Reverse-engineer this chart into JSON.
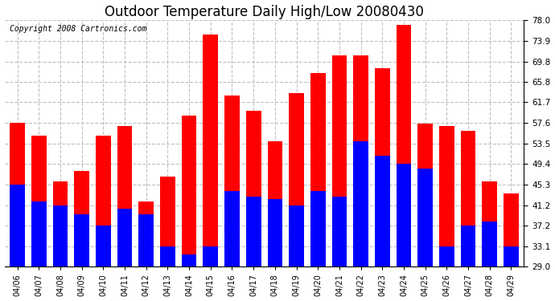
{
  "title": "Outdoor Temperature Daily High/Low 20080430",
  "copyright": "Copyright 2008 Cartronics.com",
  "dates": [
    "04/06",
    "04/07",
    "04/08",
    "04/09",
    "04/10",
    "04/11",
    "04/12",
    "04/13",
    "04/14",
    "04/15",
    "04/16",
    "04/17",
    "04/18",
    "04/19",
    "04/20",
    "04/21",
    "04/22",
    "04/23",
    "04/24",
    "04/25",
    "04/26",
    "04/27",
    "04/28",
    "04/29"
  ],
  "highs": [
    57.6,
    55.0,
    46.0,
    48.0,
    55.0,
    57.0,
    42.0,
    47.0,
    59.0,
    75.2,
    63.0,
    60.0,
    54.0,
    63.5,
    67.5,
    71.0,
    71.0,
    68.5,
    77.0,
    57.5,
    57.0,
    56.0,
    46.0,
    43.5
  ],
  "lows": [
    45.3,
    42.0,
    41.2,
    39.5,
    37.2,
    40.5,
    39.5,
    33.1,
    31.5,
    33.1,
    44.0,
    43.0,
    42.5,
    41.2,
    44.0,
    43.0,
    54.0,
    51.0,
    49.4,
    48.5,
    33.1,
    37.2,
    38.0,
    33.1
  ],
  "high_color": "#ff0000",
  "low_color": "#0000ff",
  "bg_color": "#ffffff",
  "plot_bg_color": "#ffffff",
  "grid_color": "#c0c0c0",
  "ylim_min": 29.0,
  "ylim_max": 78.0,
  "yticks": [
    29.0,
    33.1,
    37.2,
    41.2,
    45.3,
    49.4,
    53.5,
    57.6,
    61.7,
    65.8,
    69.8,
    73.9,
    78.0
  ],
  "title_fontsize": 12,
  "copyright_fontsize": 7,
  "bar_width": 0.7
}
